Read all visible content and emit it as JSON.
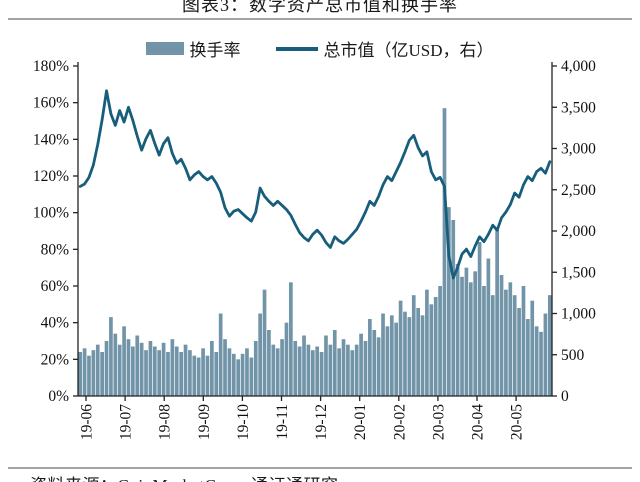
{
  "figure": {
    "title": "图表3：数字资产总市值和换手率",
    "source": "资料来源：CoinMarketCap，通证通研究"
  },
  "chart_data": {
    "type": "combo-bar-line",
    "title": "数字资产总市值和换手率",
    "gridlines": false,
    "legend_position": "top",
    "x_tick_labels": [
      "19-06",
      "19-07",
      "19-08",
      "19-09",
      "19-10",
      "19-11",
      "19-12",
      "20-01",
      "20-02",
      "20-03",
      "20-04",
      "20-05"
    ],
    "left_axis": {
      "label": "换手率",
      "unit": "%",
      "min": 0,
      "max": 180,
      "tick_labels": [
        "180%",
        "160%",
        "140%",
        "120%",
        "100%",
        "80%",
        "60%",
        "40%",
        "20%",
        "0%"
      ]
    },
    "right_axis": {
      "label": "总市值（亿USD）",
      "min": 0,
      "max": 4000,
      "tick_labels": [
        "4,000",
        "3,500",
        "3,000",
        "2,500",
        "2,000",
        "1,500",
        "1,000",
        "500",
        "0"
      ]
    },
    "series": [
      {
        "name": "换手率",
        "type": "bar",
        "axis": "left",
        "unit": "%",
        "color": "#7294a8",
        "values": [
          24,
          26,
          22,
          25,
          28,
          24,
          30,
          43,
          34,
          28,
          38,
          31,
          27,
          33,
          29,
          25,
          30,
          27,
          25,
          29,
          24,
          31,
          27,
          24,
          28,
          25,
          22,
          21,
          26,
          22,
          30,
          24,
          45,
          31,
          26,
          23,
          20,
          23,
          26,
          21,
          30,
          45,
          58,
          36,
          28,
          26,
          31,
          40,
          62,
          30,
          27,
          33,
          28,
          25,
          27,
          24,
          33,
          28,
          36,
          26,
          31,
          28,
          25,
          28,
          34,
          30,
          42,
          36,
          32,
          45,
          38,
          44,
          40,
          52,
          46,
          43,
          55,
          48,
          44,
          58,
          50,
          54,
          60,
          157,
          103,
          96,
          72,
          65,
          70,
          62,
          68,
          84,
          60,
          75,
          55,
          92,
          66,
          58,
          62,
          55,
          48,
          60,
          42,
          52,
          38,
          35,
          45,
          55
        ]
      },
      {
        "name": "总市值（亿USD，右）",
        "type": "line",
        "axis": "right",
        "unit": "亿USD",
        "color": "#175e7d",
        "values": [
          2540,
          2570,
          2650,
          2800,
          3050,
          3350,
          3700,
          3420,
          3280,
          3460,
          3320,
          3500,
          3340,
          3150,
          2980,
          3120,
          3220,
          3060,
          2920,
          3060,
          3130,
          2940,
          2820,
          2870,
          2760,
          2620,
          2680,
          2720,
          2660,
          2620,
          2660,
          2580,
          2470,
          2280,
          2180,
          2240,
          2260,
          2210,
          2160,
          2120,
          2230,
          2520,
          2420,
          2360,
          2310,
          2360,
          2310,
          2260,
          2190,
          2080,
          1980,
          1920,
          1880,
          1960,
          2010,
          1950,
          1860,
          1800,
          1930,
          1880,
          1850,
          1900,
          1960,
          2020,
          2120,
          2230,
          2360,
          2310,
          2420,
          2560,
          2660,
          2610,
          2720,
          2830,
          2960,
          3100,
          3160,
          3010,
          2910,
          2960,
          2720,
          2620,
          2650,
          2540,
          1700,
          1430,
          1560,
          1720,
          1780,
          1690,
          1820,
          1930,
          1870,
          1960,
          2070,
          2010,
          2160,
          2230,
          2320,
          2460,
          2410,
          2560,
          2660,
          2610,
          2720,
          2760,
          2700,
          2840
        ]
      }
    ]
  }
}
